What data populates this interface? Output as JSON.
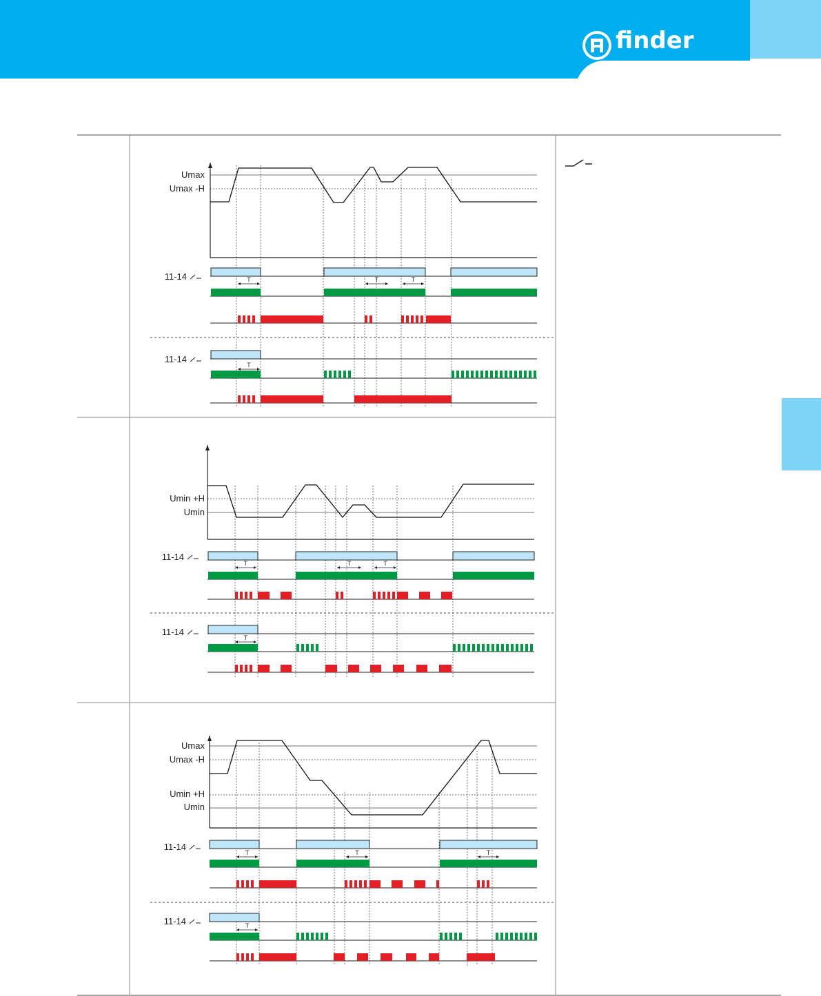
{
  "header": {
    "brand": "finder",
    "bar_color": "#00aeef",
    "tab_color": "#7fd3f5"
  },
  "side_tab_color": "#7fd3f5",
  "colors": {
    "contact_fill": "#bfe6f8",
    "green": "#009a44",
    "red": "#e31e24"
  },
  "panels": [
    {
      "levels": [
        {
          "label": "Umax"
        },
        {
          "label": "Umax -H"
        }
      ],
      "groups": [
        {
          "contact_label": "11-14"
        },
        {
          "contact_label": "11-14"
        }
      ],
      "time_label": "T"
    },
    {
      "levels": [
        {
          "label": "Umin +H"
        },
        {
          "label": "Umin"
        }
      ],
      "groups": [
        {
          "contact_label": "11-14"
        },
        {
          "contact_label": "11-14"
        }
      ],
      "time_label": "T"
    },
    {
      "levels": [
        {
          "label": "Umax"
        },
        {
          "label": "Umax -H"
        },
        {
          "label": "Umin +H"
        },
        {
          "label": "Umin"
        }
      ],
      "groups": [
        {
          "contact_label": "11-14"
        },
        {
          "contact_label": "11-14"
        }
      ],
      "time_label": "T"
    }
  ],
  "legend": {
    "icon": "relay-contact-symbol-icon"
  }
}
